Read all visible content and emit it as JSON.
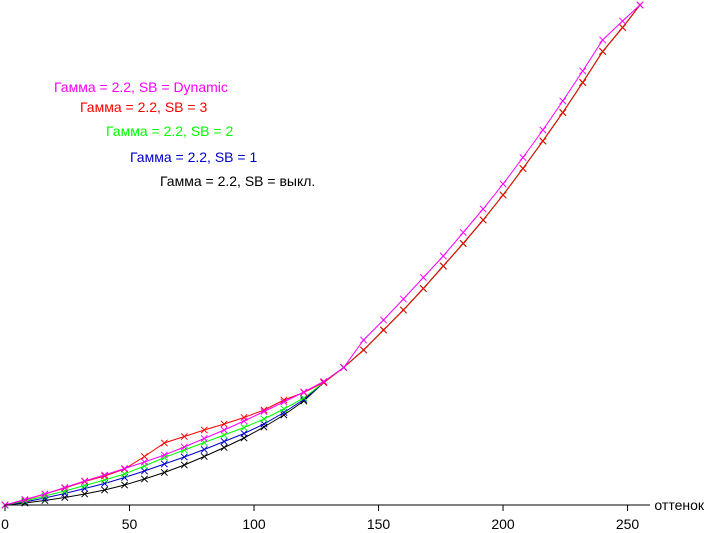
{
  "chart_data": {
    "type": "line",
    "title": "",
    "xlabel": "оттенок",
    "ylabel": "",
    "xlim": [
      0,
      255
    ],
    "ylim": [
      0,
      1
    ],
    "grid": false,
    "legend_position": "top-left",
    "xticks": [
      0,
      50,
      100,
      150,
      200,
      250
    ],
    "xtick_labels": [
      "0",
      "50",
      "100",
      "150",
      "200",
      "250"
    ],
    "x": [
      0,
      8,
      16,
      24,
      32,
      40,
      48,
      56,
      64,
      72,
      80,
      88,
      96,
      104,
      112,
      120,
      128,
      136,
      144,
      152,
      160,
      168,
      176,
      184,
      192,
      200,
      208,
      216,
      224,
      232,
      240,
      248,
      255
    ],
    "series": [
      {
        "name": "Гамма = 2.2, SB = Dynamic",
        "color": "#ff00ff",
        "values": [
          0.0,
          0.011,
          0.022,
          0.035,
          0.048,
          0.06,
          0.073,
          0.086,
          0.1,
          0.116,
          0.133,
          0.15,
          0.168,
          0.187,
          0.206,
          0.226,
          0.247,
          0.275,
          0.33,
          0.37,
          0.412,
          0.455,
          0.498,
          0.545,
          0.592,
          0.642,
          0.695,
          0.75,
          0.808,
          0.868,
          0.93,
          0.968,
          1.0
        ]
      },
      {
        "name": "Гамма = 2.2, SB = 3",
        "color": "#ff0000",
        "values": [
          0.0,
          0.01,
          0.022,
          0.034,
          0.047,
          0.058,
          0.072,
          0.097,
          0.124,
          0.137,
          0.15,
          0.162,
          0.175,
          0.19,
          0.21,
          0.225,
          0.245,
          0.275,
          0.31,
          0.35,
          0.39,
          0.433,
          0.478,
          0.523,
          0.57,
          0.62,
          0.673,
          0.728,
          0.785,
          0.845,
          0.907,
          0.955,
          1.0
        ]
      },
      {
        "name": "Гамма = 2.2, SB = 2",
        "color": "#00ff00",
        "values": [
          0.0,
          0.008,
          0.018,
          0.028,
          0.039,
          0.05,
          0.062,
          0.078,
          0.095,
          0.11,
          0.125,
          0.14,
          0.155,
          0.172,
          0.192,
          0.214,
          0.245,
          0.275,
          0.31,
          0.35,
          0.39,
          0.433,
          0.478,
          0.523,
          0.57,
          0.62,
          0.673,
          0.728,
          0.785,
          0.845,
          0.907,
          0.955,
          1.0
        ]
      },
      {
        "name": "Гамма = 2.2, SB = 1",
        "color": "#0000cc",
        "values": [
          0.0,
          0.006,
          0.014,
          0.023,
          0.033,
          0.043,
          0.055,
          0.068,
          0.082,
          0.096,
          0.111,
          0.127,
          0.143,
          0.162,
          0.185,
          0.211,
          0.245,
          0.275,
          0.31,
          0.35,
          0.39,
          0.433,
          0.478,
          0.523,
          0.57,
          0.62,
          0.673,
          0.728,
          0.785,
          0.845,
          0.907,
          0.955,
          1.0
        ]
      },
      {
        "name": "Гамма = 2.2, SB = выкл.",
        "color": "#000000",
        "values": [
          0.0,
          0.004,
          0.009,
          0.015,
          0.022,
          0.03,
          0.04,
          0.052,
          0.065,
          0.08,
          0.097,
          0.115,
          0.134,
          0.156,
          0.18,
          0.208,
          0.245,
          0.275,
          0.31,
          0.35,
          0.39,
          0.433,
          0.478,
          0.523,
          0.57,
          0.62,
          0.673,
          0.728,
          0.785,
          0.845,
          0.907,
          0.955,
          1.0
        ]
      }
    ]
  }
}
